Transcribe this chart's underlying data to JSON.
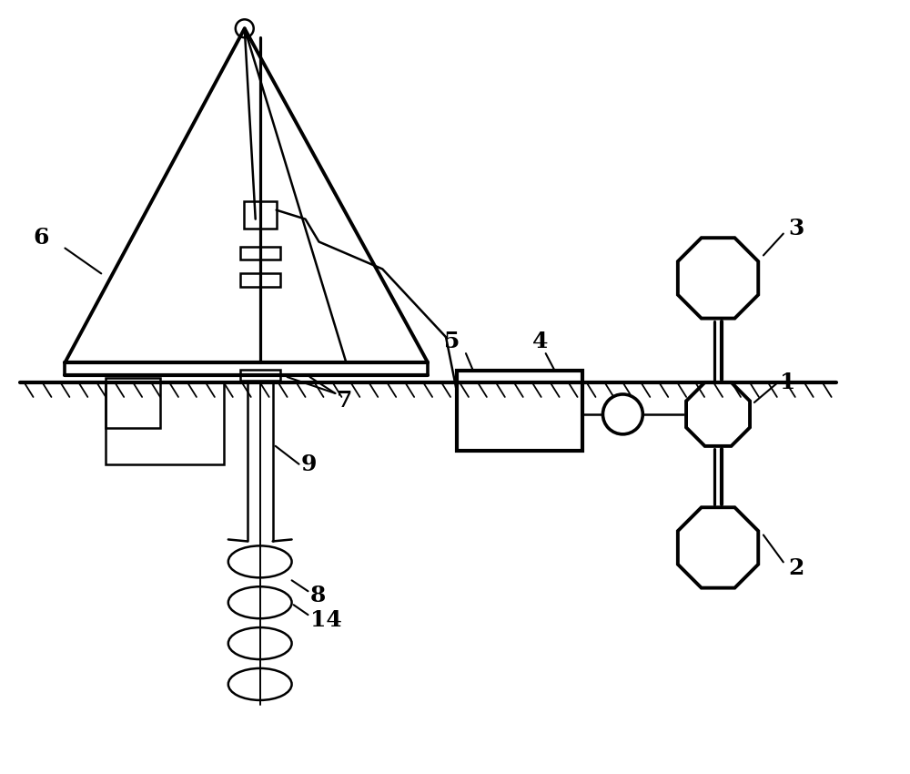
{
  "bg_color": "#ffffff",
  "lc": "#000000",
  "lw": 1.8,
  "figw": 10.0,
  "figh": 8.5
}
